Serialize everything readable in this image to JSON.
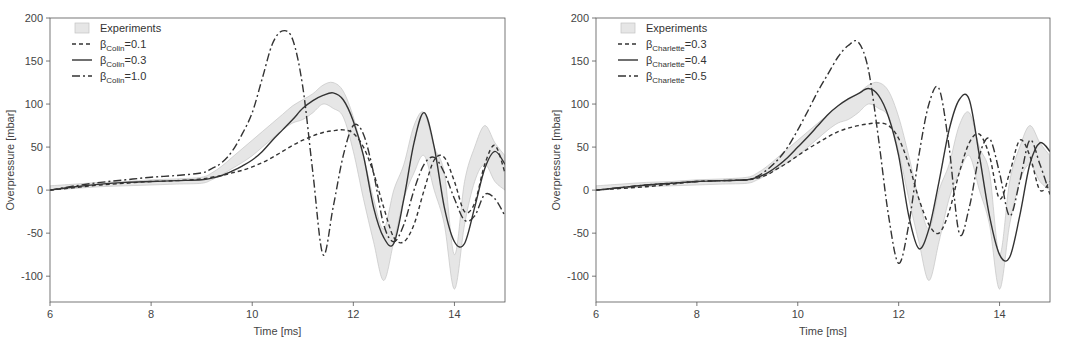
{
  "chart_data": [
    {
      "type": "line",
      "xlabel": "Time [ms]",
      "ylabel": "Overpressure [mbar]",
      "xlim": [
        6,
        15
      ],
      "ylim": [
        -130,
        200
      ],
      "xticks": [
        6,
        8,
        10,
        12,
        14
      ],
      "yticks": [
        -100,
        -50,
        0,
        50,
        100,
        150,
        200
      ],
      "legend": "upper left",
      "grid": false,
      "x": [
        6,
        6.5,
        7,
        7.5,
        8,
        8.5,
        9,
        9.2,
        9.4,
        9.6,
        9.8,
        10,
        10.2,
        10.4,
        10.6,
        10.8,
        11,
        11.2,
        11.4,
        11.6,
        11.8,
        12,
        12.2,
        12.4,
        12.6,
        12.8,
        13,
        13.2,
        13.4,
        13.6,
        13.8,
        14,
        14.2,
        14.4,
        14.6,
        14.8,
        15
      ],
      "series": [
        {
          "name": "Experiments",
          "type": "area",
          "color": "#e6e6e6",
          "values": [
            0,
            2,
            4,
            5,
            6,
            7,
            8,
            12,
            18,
            25,
            32,
            40,
            50,
            60,
            70,
            78,
            82,
            90,
            100,
            95,
            85,
            45,
            -10,
            -60,
            -105,
            -60,
            -10,
            20,
            40,
            0,
            -40,
            -115,
            -40,
            10,
            30,
            10,
            0
          ],
          "upper": [
            5,
            7,
            9,
            10,
            12,
            13,
            15,
            20,
            28,
            38,
            48,
            58,
            68,
            78,
            88,
            98,
            105,
            112,
            122,
            125,
            115,
            85,
            40,
            -10,
            -45,
            0,
            30,
            75,
            90,
            50,
            20,
            -75,
            10,
            50,
            75,
            55,
            40
          ]
        },
        {
          "name": "βColin=0.1",
          "type": "line",
          "color": "#333333",
          "line_style": "dashed",
          "values": [
            0,
            3,
            6,
            8,
            10,
            11,
            13,
            15,
            17,
            20,
            23,
            27,
            32,
            38,
            45,
            52,
            58,
            63,
            67,
            69,
            70,
            66,
            50,
            20,
            -20,
            -55,
            -60,
            -40,
            0,
            35,
            38,
            10,
            -25,
            -15,
            30,
            52,
            20
          ]
        },
        {
          "name": "βColin=0.3",
          "type": "line",
          "color": "#333333",
          "line_style": "solid",
          "values": [
            0,
            4,
            7,
            9,
            10,
            11,
            12,
            14,
            17,
            22,
            28,
            35,
            45,
            58,
            70,
            82,
            95,
            104,
            110,
            113,
            105,
            80,
            40,
            -20,
            -55,
            -62,
            -10,
            55,
            90,
            50,
            -20,
            -60,
            -62,
            -20,
            25,
            45,
            30
          ]
        },
        {
          "name": "βColin=1.0",
          "type": "line",
          "color": "#333333",
          "line_style": "dashdot",
          "values": [
            0,
            5,
            9,
            12,
            15,
            17,
            20,
            25,
            32,
            45,
            65,
            90,
            130,
            170,
            185,
            175,
            120,
            20,
            -75,
            -20,
            40,
            75,
            65,
            20,
            -40,
            -60,
            -40,
            0,
            30,
            38,
            20,
            -10,
            -35,
            -30,
            -5,
            -10,
            -30
          ]
        }
      ]
    },
    {
      "type": "line",
      "xlabel": "Time [ms]",
      "ylabel": "Overpressure [mbar]",
      "xlim": [
        6,
        15
      ],
      "ylim": [
        -130,
        200
      ],
      "xticks": [
        6,
        8,
        10,
        12,
        14
      ],
      "yticks": [
        -100,
        -50,
        0,
        50,
        100,
        150,
        200
      ],
      "legend": "upper left",
      "grid": false,
      "x": [
        6,
        6.5,
        7,
        7.5,
        8,
        8.5,
        9,
        9.2,
        9.4,
        9.6,
        9.8,
        10,
        10.2,
        10.4,
        10.6,
        10.8,
        11,
        11.2,
        11.4,
        11.6,
        11.8,
        12,
        12.2,
        12.4,
        12.6,
        12.8,
        13,
        13.2,
        13.4,
        13.6,
        13.8,
        14,
        14.2,
        14.4,
        14.6,
        14.8,
        15
      ],
      "series": [
        {
          "name": "Experiments",
          "type": "area",
          "color": "#e6e6e6",
          "values": [
            0,
            2,
            4,
            5,
            6,
            7,
            8,
            12,
            18,
            25,
            32,
            40,
            50,
            60,
            70,
            78,
            82,
            90,
            100,
            95,
            85,
            45,
            -10,
            -60,
            -105,
            -60,
            -10,
            20,
            40,
            0,
            -40,
            -115,
            -40,
            10,
            30,
            10,
            0
          ],
          "upper": [
            5,
            7,
            9,
            10,
            12,
            13,
            15,
            20,
            28,
            38,
            48,
            58,
            68,
            78,
            88,
            98,
            105,
            112,
            122,
            125,
            115,
            85,
            40,
            -10,
            -45,
            0,
            30,
            75,
            90,
            50,
            20,
            -75,
            10,
            50,
            75,
            55,
            40
          ]
        },
        {
          "name": "βCharlette=0.3",
          "type": "line",
          "color": "#333333",
          "line_style": "dashed",
          "values": [
            0,
            2,
            4,
            7,
            10,
            11,
            12,
            14,
            18,
            25,
            32,
            40,
            48,
            55,
            62,
            68,
            72,
            75,
            77,
            78,
            75,
            60,
            30,
            -10,
            -40,
            -50,
            -25,
            20,
            55,
            65,
            40,
            -10,
            20,
            58,
            40,
            0,
            10
          ]
        },
        {
          "name": "βCharlette=0.4",
          "type": "line",
          "color": "#333333",
          "line_style": "solid",
          "values": [
            0,
            3,
            6,
            8,
            10,
            11,
            12,
            15,
            20,
            28,
            38,
            50,
            62,
            75,
            88,
            98,
            106,
            112,
            118,
            110,
            85,
            40,
            -30,
            -68,
            -45,
            10,
            70,
            105,
            105,
            40,
            -30,
            -75,
            -78,
            -30,
            30,
            55,
            45
          ]
        },
        {
          "name": "βCharlette=0.5",
          "type": "line",
          "color": "#333333",
          "line_style": "dashdot",
          "values": [
            0,
            3,
            6,
            8,
            10,
            11,
            12,
            16,
            24,
            35,
            50,
            70,
            92,
            115,
            135,
            155,
            168,
            172,
            140,
            60,
            -30,
            -85,
            -40,
            40,
            100,
            118,
            50,
            -50,
            -20,
            40,
            60,
            20,
            -30,
            10,
            58,
            30,
            -5
          ]
        }
      ]
    }
  ]
}
